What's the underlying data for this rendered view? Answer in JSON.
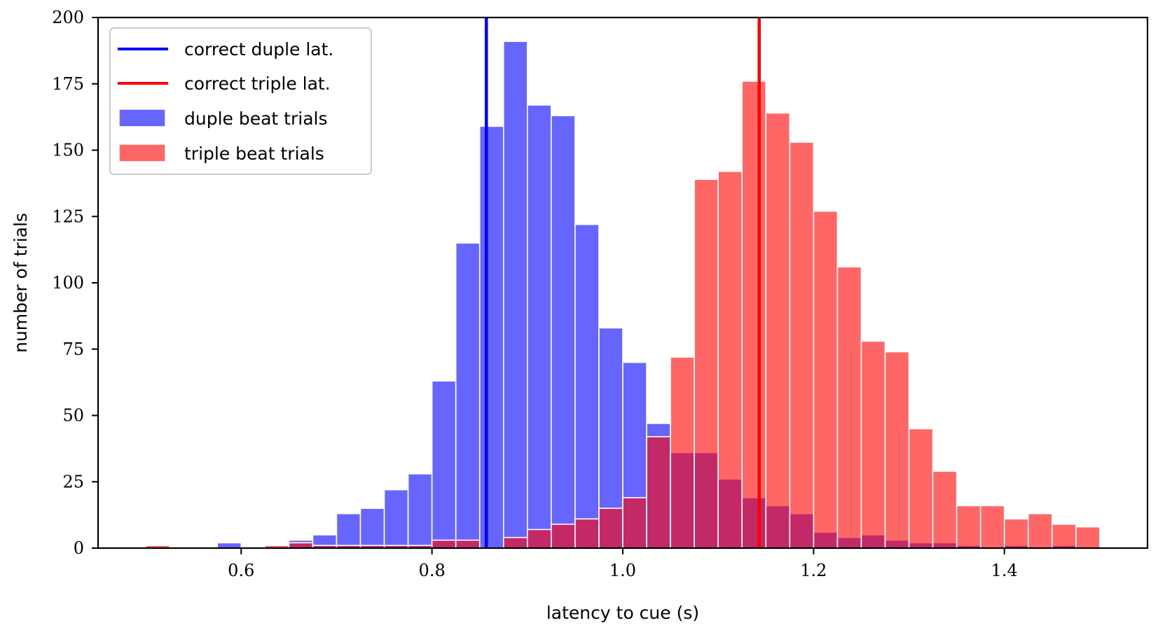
{
  "chart_data": {
    "type": "bar",
    "title": "",
    "xlabel": "latency to cue (s)",
    "ylabel": "number of trials",
    "xlim": [
      0.45,
      1.55
    ],
    "ylim": [
      0,
      200
    ],
    "xticks": [
      "0.6",
      "0.8",
      "1.0",
      "1.2",
      "1.4"
    ],
    "xtick_values": [
      0.6,
      0.8,
      1.0,
      1.2,
      1.4
    ],
    "yticks": [
      "0",
      "25",
      "50",
      "75",
      "100",
      "125",
      "150",
      "175",
      "200"
    ],
    "ytick_values": [
      0,
      25,
      50,
      75,
      100,
      125,
      150,
      175,
      200
    ],
    "grid": false,
    "legend_position": "top-left",
    "bin_edges": [
      0.5,
      0.525,
      0.55,
      0.575,
      0.6,
      0.625,
      0.65,
      0.675,
      0.7,
      0.725,
      0.75,
      0.775,
      0.8,
      0.825,
      0.85,
      0.875,
      0.9,
      0.925,
      0.95,
      0.975,
      1.0,
      1.025,
      1.05,
      1.075,
      1.1,
      1.125,
      1.15,
      1.175,
      1.2,
      1.225,
      1.25,
      1.275,
      1.3,
      1.325,
      1.35,
      1.375,
      1.4,
      1.425,
      1.45,
      1.475,
      1.5
    ],
    "series": [
      {
        "name": "duple beat trials",
        "color": "#0000ff",
        "alpha": 0.6,
        "values": [
          0,
          0,
          0,
          2,
          0,
          0,
          3,
          5,
          13,
          15,
          22,
          28,
          63,
          115,
          159,
          191,
          167,
          163,
          122,
          83,
          70,
          47,
          36,
          36,
          26,
          19,
          16,
          13,
          6,
          4,
          5,
          3,
          2,
          2,
          1,
          0,
          1,
          0,
          1,
          0
        ]
      },
      {
        "name": "triple beat trials",
        "color": "#ff0000",
        "alpha": 0.6,
        "values": [
          1,
          0,
          0,
          0,
          0,
          1,
          2,
          1,
          1,
          1,
          1,
          1,
          3,
          3,
          0,
          4,
          7,
          9,
          11,
          15,
          19,
          42,
          72,
          139,
          142,
          176,
          164,
          153,
          127,
          106,
          78,
          74,
          45,
          29,
          16,
          16,
          11,
          13,
          9,
          8
        ]
      }
    ],
    "vlines": [
      {
        "name": "correct duple lat.",
        "x": 0.857,
        "color": "#0000ff"
      },
      {
        "name": "correct triple lat.",
        "x": 1.143,
        "color": "#ff0000"
      }
    ]
  }
}
